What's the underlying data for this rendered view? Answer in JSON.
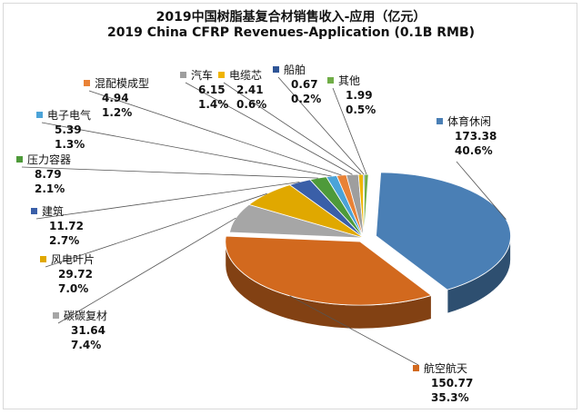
{
  "chart_data": {
    "type": "pie",
    "title": "2019中国树脂基复合材销售收入-应用（亿元）",
    "subtitle": "2019 China CFRP Revenues-Application (0.1B RMB)",
    "slices": [
      {
        "name": "体育休闲",
        "value": 173.38,
        "percent": "40.6%",
        "color": "#4a7fb5"
      },
      {
        "name": "航空航天",
        "value": 150.77,
        "percent": "35.3%",
        "color": "#d2691e"
      },
      {
        "name": "碳碳复材",
        "value": 31.64,
        "percent": "7.4%",
        "color": "#a6a6a6"
      },
      {
        "name": "风电叶片",
        "value": 29.72,
        "percent": "7.0%",
        "color": "#e0a800"
      },
      {
        "name": "建筑",
        "value": 11.72,
        "percent": "2.7%",
        "color": "#3a5fa8"
      },
      {
        "name": "压力容器",
        "value": 8.79,
        "percent": "2.1%",
        "color": "#4e9a3a"
      },
      {
        "name": "电子电气",
        "value": 5.39,
        "percent": "1.3%",
        "color": "#4ba3d8"
      },
      {
        "name": "混配模成型",
        "value": 4.94,
        "percent": "1.2%",
        "color": "#e98236"
      },
      {
        "name": "汽车",
        "value": 6.15,
        "percent": "1.4%",
        "color": "#9e9e9e"
      },
      {
        "name": "电缆芯",
        "value": 2.41,
        "percent": "0.6%",
        "color": "#f0b400"
      },
      {
        "name": "船舶",
        "value": 0.67,
        "percent": "0.2%",
        "color": "#2f5597"
      },
      {
        "name": "其他",
        "value": 1.99,
        "percent": "0.5%",
        "color": "#70ad47"
      }
    ]
  }
}
